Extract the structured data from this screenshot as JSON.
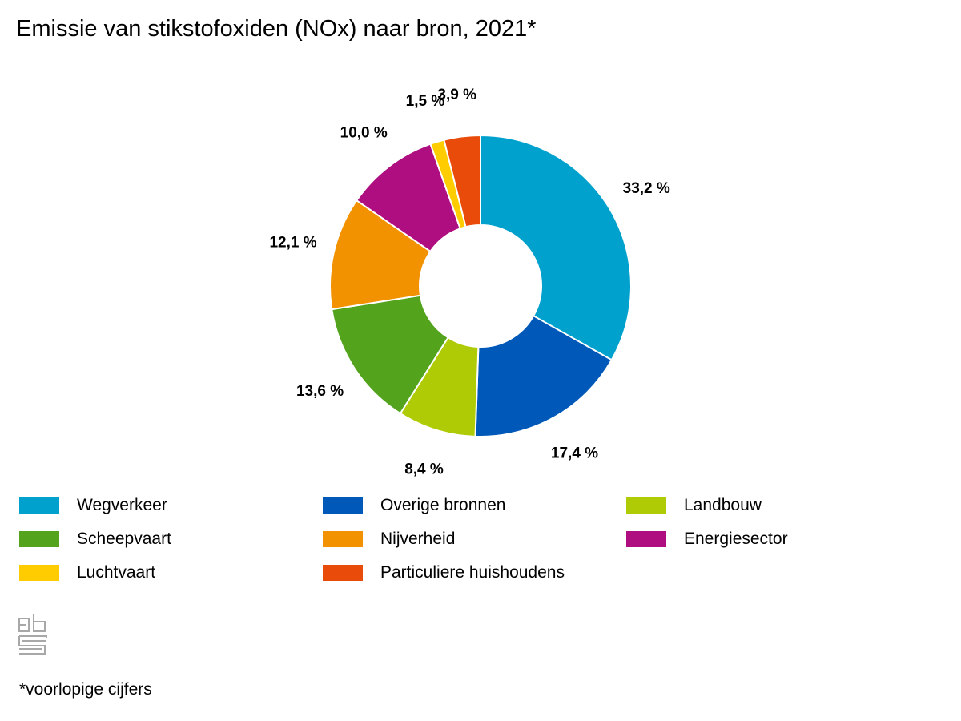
{
  "title": "Emissie van stikstofoxiden (NOx) naar bron, 2021*",
  "footnote": "*voorlopige cijfers",
  "logo": {
    "icon": "cbs-logo-icon"
  },
  "chart_data": {
    "type": "pie",
    "donut": true,
    "unit": "%",
    "categories": [
      "Wegverkeer",
      "Overige bronnen",
      "Landbouw",
      "Scheepvaart",
      "Nijverheid",
      "Energiesector",
      "Luchtvaart",
      "Particuliere huishoudens"
    ],
    "values": [
      33.2,
      17.4,
      8.4,
      13.6,
      12.1,
      10.0,
      1.5,
      3.9
    ],
    "labels": [
      "33,2 %",
      "17,4 %",
      "8,4 %",
      "13,6 %",
      "12,1 %",
      "10,0 %",
      "1,5 %",
      "3,9 %"
    ],
    "colors": [
      "#00a1cd",
      "#0058b8",
      "#afcb05",
      "#53a31d",
      "#f39200",
      "#af0e80",
      "#ffcc00",
      "#e94c0a"
    ],
    "legend_placement": "bottom"
  }
}
